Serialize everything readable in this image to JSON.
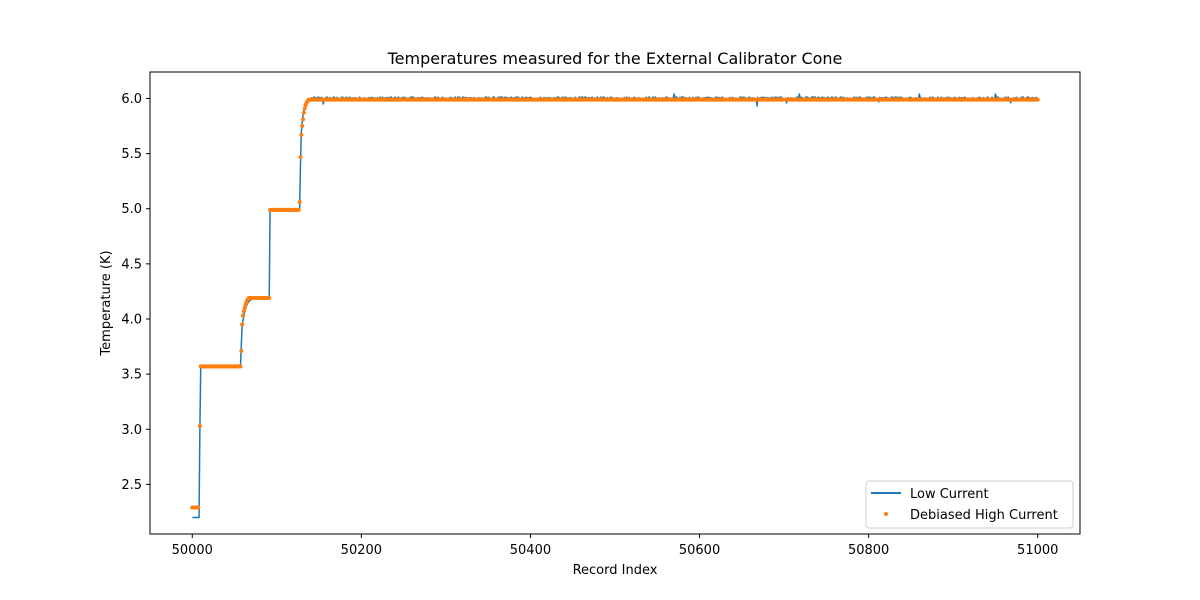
{
  "chart_data": {
    "type": "line",
    "title": "Temperatures measured for the External Calibrator Cone",
    "xlabel": "Record Index",
    "ylabel": "Temperature (K)",
    "xlim": [
      49950,
      51050
    ],
    "ylim": [
      2.05,
      6.24
    ],
    "xticks": [
      50000,
      50200,
      50400,
      50600,
      50800,
      51000
    ],
    "yticks": [
      2.5,
      3.0,
      3.5,
      4.0,
      4.5,
      5.0,
      5.5,
      6.0
    ],
    "ytick_labels": [
      "2.5",
      "3.0",
      "3.5",
      "4.0",
      "4.5",
      "5.0",
      "5.5",
      "6.0"
    ],
    "grid": false,
    "legend_position": "lower-right",
    "colors": {
      "low_current": "#1f77b4",
      "debiased_high_current": "#ff7f0e"
    },
    "series": [
      {
        "name": "Low Current",
        "style": "line",
        "segments": [
          {
            "x": [
              50000,
              50008,
              50009,
              50010,
              50012,
              50057,
              50059,
              50063,
              50066,
              50070,
              50075,
              50091,
              50092,
              50093,
              50127,
              50128,
              50129,
              50131,
              50133,
              50136,
              50140
            ],
            "y": [
              2.2,
              2.2,
              3.0,
              3.57,
              3.57,
              3.57,
              3.95,
              4.1,
              4.15,
              4.18,
              4.19,
              4.19,
              4.99,
              4.99,
              5.0,
              5.4,
              5.7,
              5.85,
              5.93,
              5.98,
              6.0
            ]
          },
          {
            "plateau_start": 50140,
            "plateau_end": 51000,
            "mean": 6.0,
            "noise_amplitude": 0.012
          }
        ],
        "dips": [
          {
            "x": 50155,
            "y": 5.95
          },
          {
            "x": 50668,
            "y": 5.93
          },
          {
            "x": 50703,
            "y": 5.96
          },
          {
            "x": 50812,
            "y": 5.97
          },
          {
            "x": 50968,
            "y": 5.96
          }
        ],
        "spikes": [
          {
            "x": 50570,
            "y": 6.04
          },
          {
            "x": 50718,
            "y": 6.04
          },
          {
            "x": 50860,
            "y": 6.04
          },
          {
            "x": 50950,
            "y": 6.04
          }
        ]
      },
      {
        "name": "Debiased High Current",
        "style": "points",
        "segments": [
          {
            "x": [
              50000,
              50001,
              50002,
              50003,
              50004,
              50005,
              50006,
              50007
            ],
            "y": [
              2.29,
              2.29,
              2.29,
              2.29,
              2.29,
              2.29,
              2.29,
              2.29
            ]
          },
          {
            "x": [
              50009
            ],
            "y": [
              3.03
            ]
          },
          {
            "range": [
              50010,
              50057
            ],
            "y": 3.57
          },
          {
            "x": [
              50058,
              50059,
              50060,
              50061,
              50062,
              50063,
              50064,
              50065,
              50066,
              50067,
              50068
            ],
            "y": [
              3.71,
              3.95,
              4.03,
              4.07,
              4.1,
              4.13,
              4.15,
              4.17,
              4.18,
              4.19,
              4.19
            ]
          },
          {
            "range": [
              50069,
              50091
            ],
            "y": 4.19
          },
          {
            "range": [
              50092,
              50126
            ],
            "y": 4.99
          },
          {
            "x": [
              50127,
              50128,
              50129,
              50130,
              50131,
              50132,
              50133,
              50134,
              50135,
              50136,
              50137,
              50138
            ],
            "y": [
              5.06,
              5.47,
              5.67,
              5.75,
              5.81,
              5.87,
              5.91,
              5.94,
              5.96,
              5.97,
              5.98,
              5.99
            ]
          },
          {
            "range": [
              50139,
              51000
            ],
            "y": 5.99
          }
        ]
      }
    ]
  }
}
